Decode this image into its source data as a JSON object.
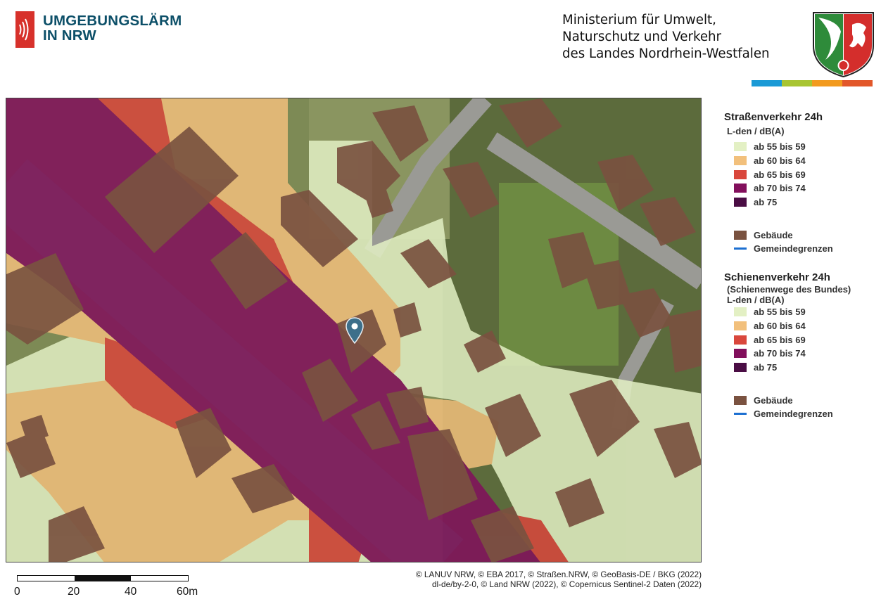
{
  "header": {
    "brand_line1": "UMGEBUNGSLÄRM",
    "brand_line2": "IN NRW",
    "ministry_line1": "Ministerium für Umwelt,",
    "ministry_line2": "Naturschutz und Verkehr",
    "ministry_line3": "des Landes Nordrhein-Westfalen",
    "colorbar": [
      "#1b9ad6",
      "#a8c532",
      "#f29a1e",
      "#e2572a"
    ]
  },
  "legend": {
    "road": {
      "title": "Straßenverkehr 24h",
      "unit": "L-den / dB(A)",
      "classes": [
        {
          "label": "ab 55 bis 59",
          "color": "#e3f0c4"
        },
        {
          "label": "ab 60 bis 64",
          "color": "#f2c07c"
        },
        {
          "label": "ab 65 bis 69",
          "color": "#d9473c"
        },
        {
          "label": "ab 70 bis 74",
          "color": "#820f5c"
        },
        {
          "label": "ab 75",
          "color": "#4a0d44"
        }
      ],
      "building_label": "Gebäude",
      "building_color": "#7a5240",
      "boundary_label": "Gemeindegrenzen",
      "boundary_color": "#1c6fd1"
    },
    "rail": {
      "title": "Schienenverkehr 24h",
      "subtitle": "(Schienenwege des Bundes)",
      "unit": "L-den / dB(A)",
      "classes": [
        {
          "label": "ab 55 bis 59",
          "color": "#e3f0c4"
        },
        {
          "label": "ab 60 bis 64",
          "color": "#f2c07c"
        },
        {
          "label": "ab 65 bis 69",
          "color": "#d9473c"
        },
        {
          "label": "ab 70 bis 74",
          "color": "#820f5c"
        },
        {
          "label": "ab 75",
          "color": "#4a0d44"
        }
      ],
      "building_label": "Gebäude",
      "building_color": "#7a5240",
      "boundary_label": "Gemeindegrenzen",
      "boundary_color": "#1c6fd1"
    }
  },
  "scale": {
    "labels": [
      "0",
      "20",
      "40",
      "60m"
    ]
  },
  "credits": {
    "line1": "© LANUV NRW, © EBA 2017, © Straßen.NRW, © GeoBasis-DE / BKG (2022)",
    "line2": "dl-de/by-2-0, © Land NRW (2022), © Copernicus Sentinel-2 Daten (2022)"
  },
  "map": {
    "marker_icon": "location-pin-icon"
  }
}
